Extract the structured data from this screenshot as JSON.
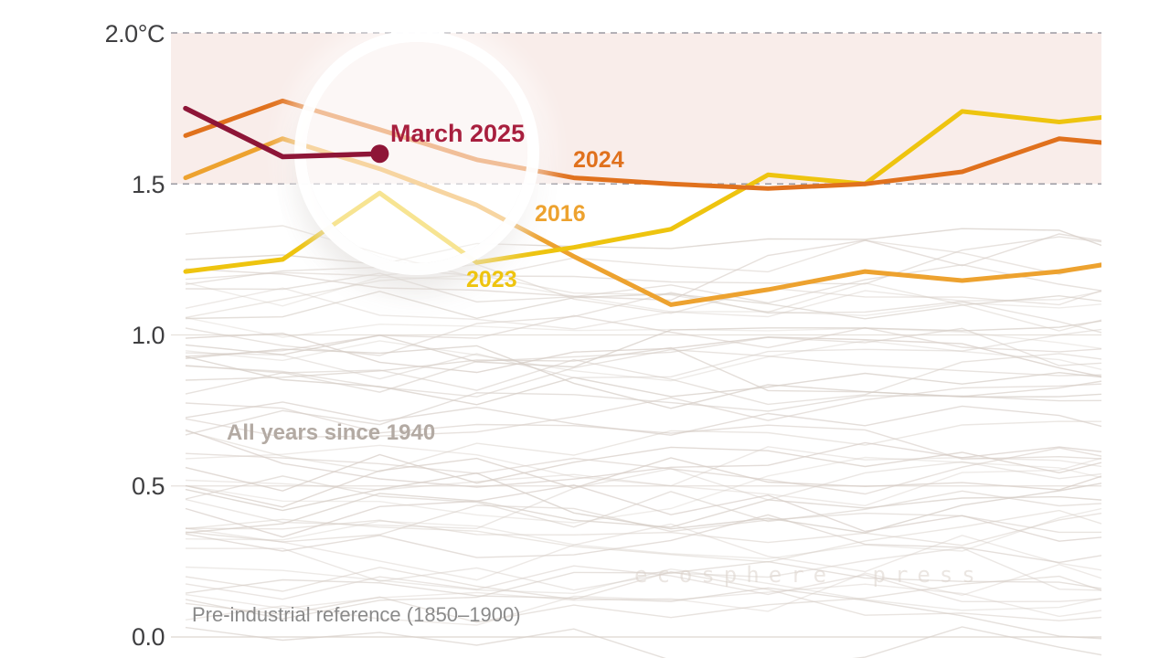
{
  "axis": {
    "ticks": [
      "2.0°C",
      "1.5",
      "1.0",
      "0.5",
      "0.0"
    ],
    "tick_values": [
      2.0,
      1.5,
      1.0,
      0.5,
      0.0
    ]
  },
  "annotations": {
    "all_years_label": "All years since 1940",
    "reference_label": "Pre-industrial reference (1850–1900)",
    "watermark": "ecosphere press"
  },
  "colors": {
    "band_pink": "#f9edea",
    "dashed_gridline": "#9b9aa2",
    "solid_gridline": "#e7e1dc",
    "zero_gridline": "#ddd6d0",
    "spaghetti_gray": "#d5ccc5",
    "maroon_2025": "#8e1537",
    "orange_2024": "#e06a1b",
    "amber_2016": "#efa232",
    "yellow_2023": "#f0c616",
    "march_label_red": "#a81f3e"
  },
  "chart_data": {
    "type": "line",
    "title": "",
    "xlabel": "",
    "ylabel": "",
    "ylim": [
      -0.07,
      2.08
    ],
    "months_shown": 11,
    "shaded_band": {
      "from": 1.5,
      "to": 2.0,
      "color": "#f9edea"
    },
    "gridlines": {
      "dashed_at": [
        2.0,
        1.5
      ],
      "solid_at": [
        1.0,
        0.5,
        0.0
      ]
    },
    "series": [
      {
        "id": "2025",
        "label": "March 2025",
        "color": "#8e1537",
        "values": [
          1.75,
          1.59,
          1.6
        ],
        "endpoint_dot": {
          "month_index": 2,
          "value": 1.6
        }
      },
      {
        "id": "2024",
        "label": "2024",
        "color": "#e0711d",
        "values": [
          1.66,
          1.775,
          1.68,
          1.58,
          1.52,
          1.5,
          1.485,
          1.5,
          1.54,
          1.65,
          1.62
        ]
      },
      {
        "id": "2016",
        "label": "2016",
        "color": "#eda22f",
        "values": [
          1.52,
          1.65,
          1.55,
          1.43,
          1.26,
          1.1,
          1.15,
          1.21,
          1.18,
          1.21,
          1.26
        ]
      },
      {
        "id": "2023",
        "label": "2023",
        "color": "#eec40f",
        "values": [
          1.21,
          1.25,
          1.47,
          1.24,
          1.29,
          1.35,
          1.53,
          1.5,
          1.74,
          1.705,
          1.74
        ]
      }
    ],
    "background_series": {
      "label": "All years since 1940",
      "count": 56,
      "seed": 987654321,
      "baseline_min": 0.05,
      "baseline_max": 1.26,
      "noise": 0.16,
      "points": 11,
      "color": "#d5ccc5"
    },
    "legend": "inline-labels",
    "grid": "partial"
  }
}
